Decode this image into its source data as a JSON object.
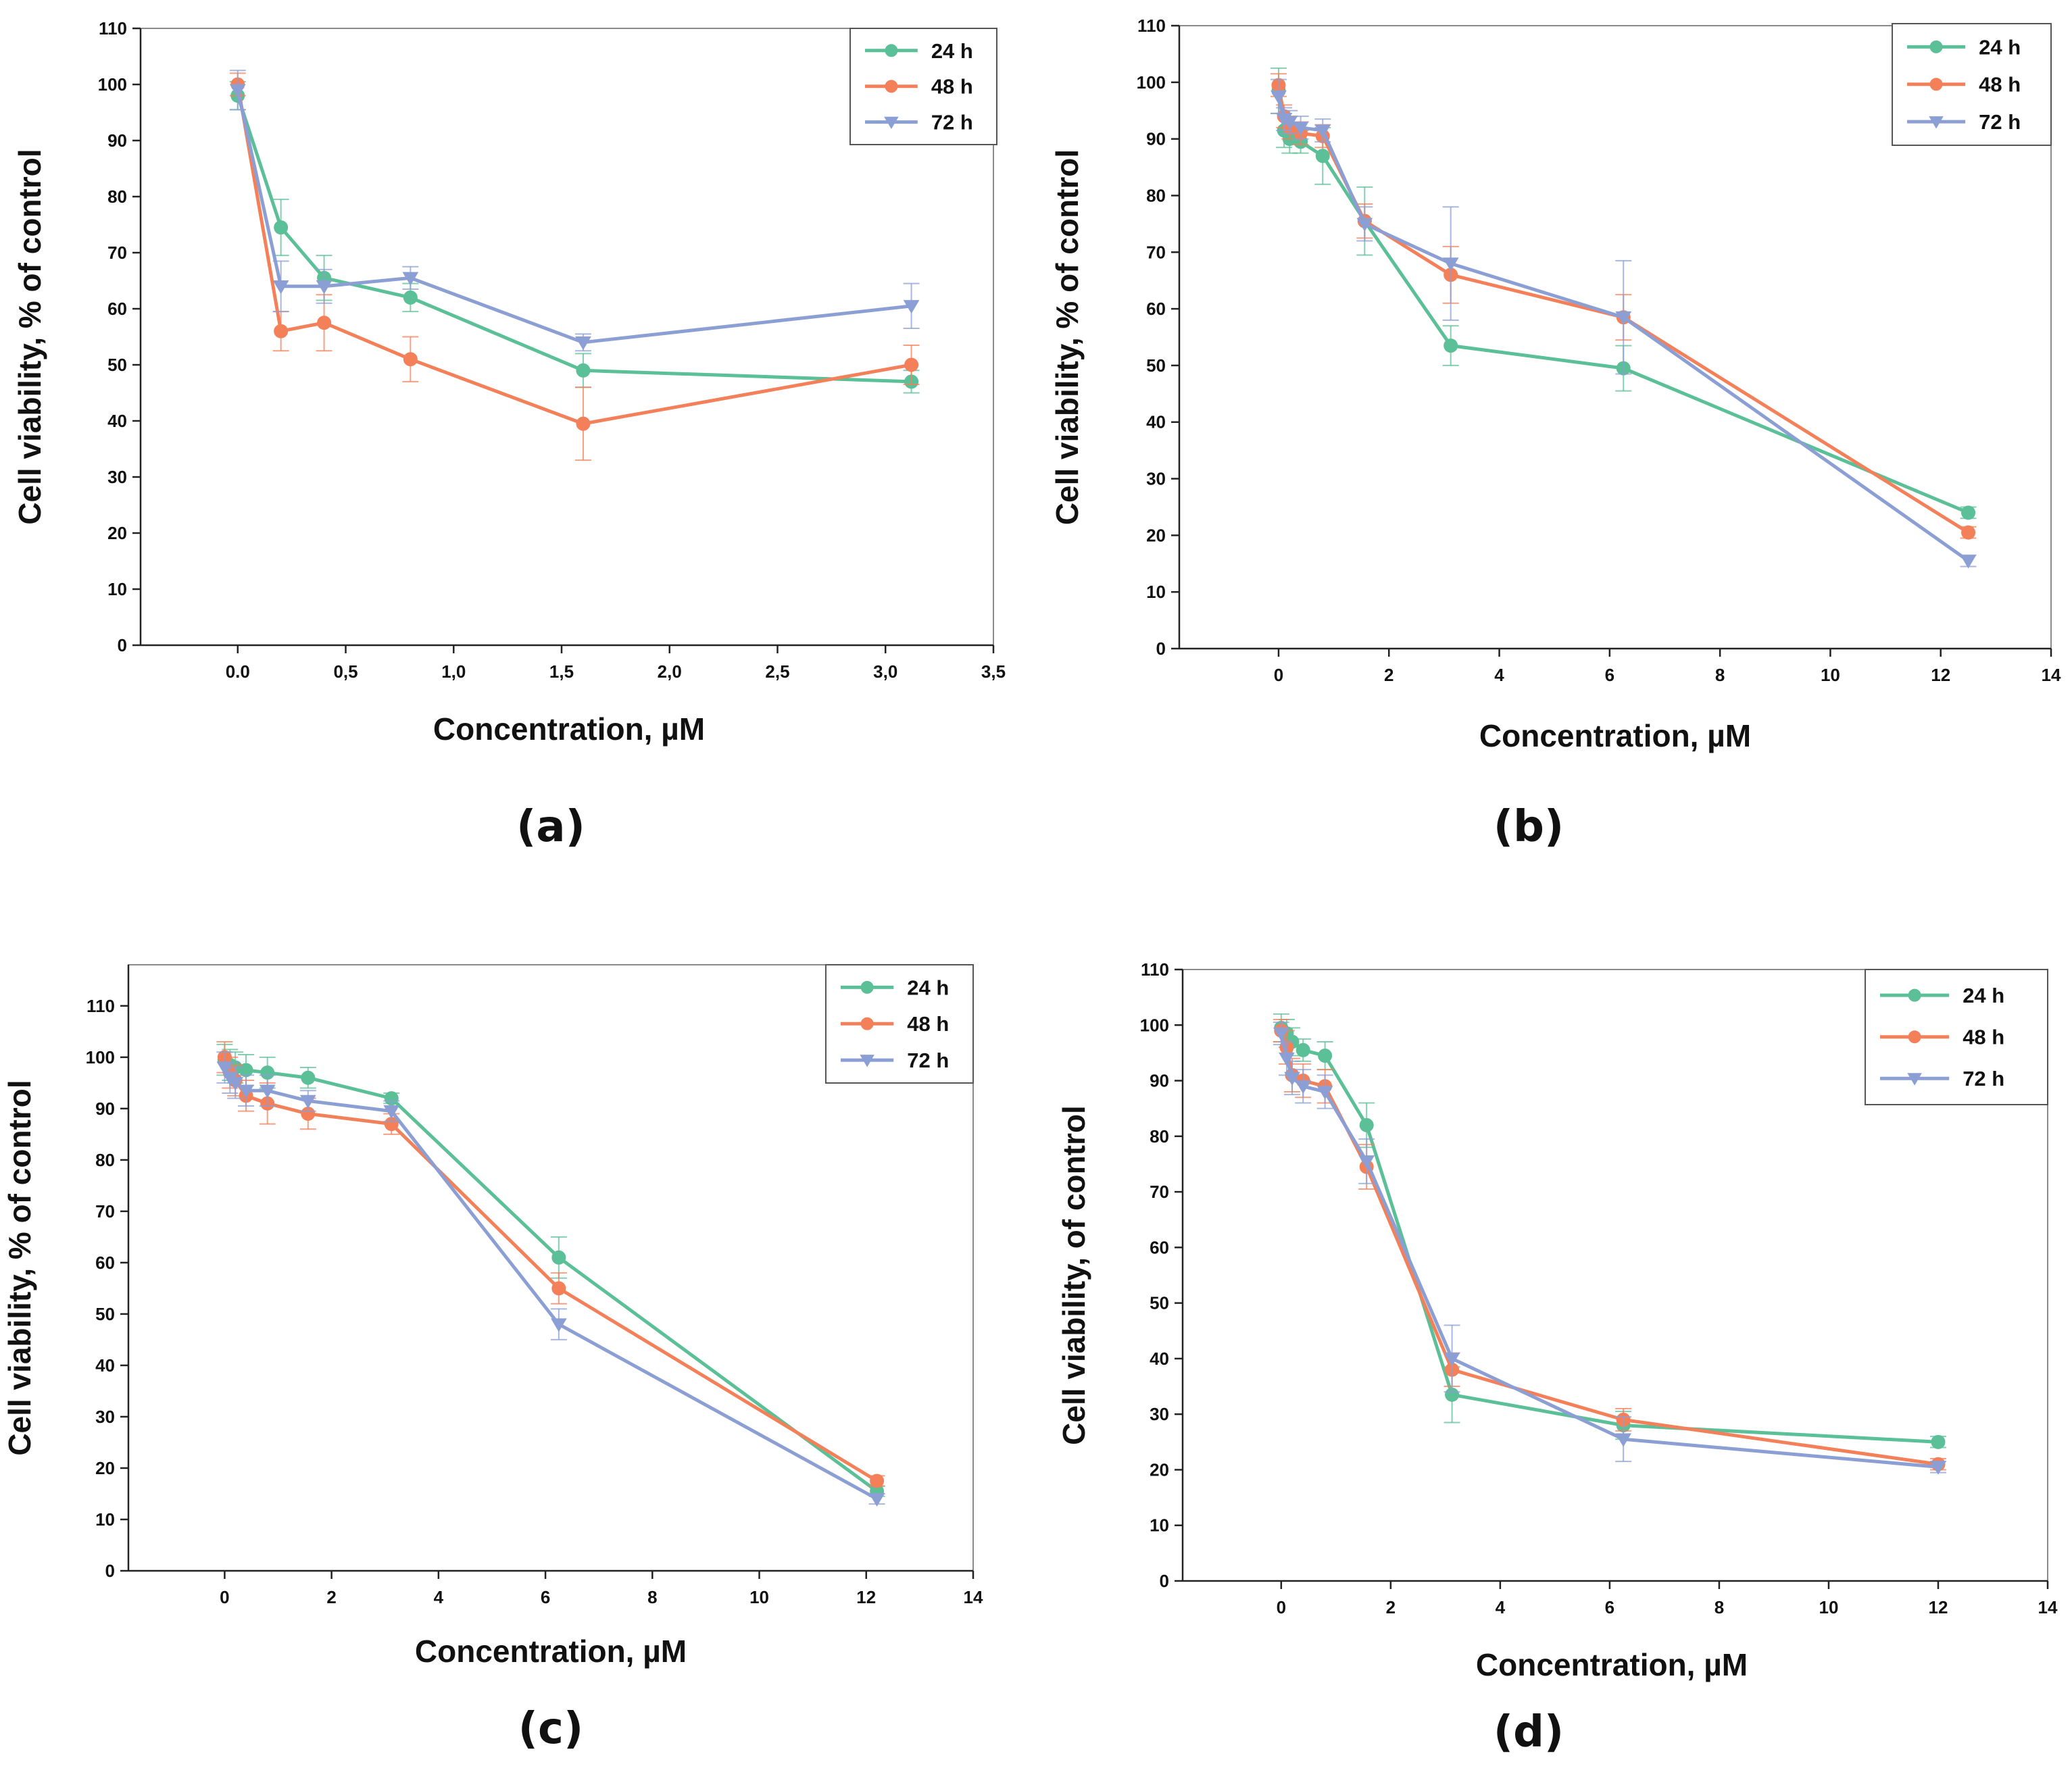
{
  "colors": {
    "s24": "#5bbf97",
    "s48": "#f4805a",
    "s72": "#8c9fd4",
    "axis": "#222222"
  },
  "chart_data": [
    {
      "type": "line",
      "panel_label": "(a)",
      "ylabel": "Cell viability, % of control",
      "xlabel": "Concentration, µM",
      "xlim": [
        -0.45,
        3.5
      ],
      "ylim": [
        0,
        110
      ],
      "xticks": [
        0,
        0.5,
        1.0,
        1.5,
        2.0,
        2.5,
        3.0,
        3.5
      ],
      "xtick_labels": [
        "0.0",
        "0,5",
        "1,0",
        "1,5",
        "2,0",
        "2,5",
        "3,0",
        "3,5"
      ],
      "yticks": [
        0,
        10,
        20,
        30,
        40,
        50,
        60,
        70,
        80,
        90,
        100,
        110
      ],
      "ytick_labels": [
        "0",
        "10",
        "20",
        "30",
        "40",
        "50",
        "60",
        "70",
        "80",
        "90",
        "100",
        "110"
      ],
      "legend_position": "top-right",
      "series": [
        {
          "name": "24 h",
          "marker": "circle",
          "x": [
            0,
            0.2,
            0.4,
            0.8,
            1.6,
            3.12
          ],
          "y": [
            98,
            74.5,
            65.5,
            62,
            49,
            47
          ],
          "err": [
            2.5,
            5,
            4,
            2.5,
            3,
            2
          ]
        },
        {
          "name": "48 h",
          "marker": "circle",
          "x": [
            0,
            0.2,
            0.4,
            0.8,
            1.6,
            3.12
          ],
          "y": [
            100,
            56,
            57.5,
            51,
            39.5,
            50
          ],
          "err": [
            2,
            3.5,
            5,
            4,
            6.5,
            3.5
          ]
        },
        {
          "name": "72 h",
          "marker": "triangle",
          "x": [
            0,
            0.2,
            0.4,
            0.8,
            1.6,
            3.12
          ],
          "y": [
            99,
            64,
            64,
            65.5,
            54,
            60.5
          ],
          "err": [
            3.5,
            4.5,
            3,
            2,
            1.5,
            4
          ]
        }
      ]
    },
    {
      "type": "line",
      "panel_label": "(b)",
      "ylabel": "Cell viability, % of control",
      "xlabel": "Concentration, µM",
      "xlim": [
        -1.8,
        14
      ],
      "ylim": [
        0,
        110
      ],
      "xticks": [
        0,
        2,
        4,
        6,
        8,
        10,
        12,
        14
      ],
      "xtick_labels": [
        "0",
        "2",
        "4",
        "6",
        "8",
        "10",
        "12",
        "14"
      ],
      "yticks": [
        0,
        10,
        20,
        30,
        40,
        50,
        60,
        70,
        80,
        90,
        100,
        110
      ],
      "ytick_labels": [
        "0",
        "10",
        "20",
        "30",
        "40",
        "50",
        "60",
        "70",
        "80",
        "90",
        "100",
        "110"
      ],
      "legend_position": "top-right",
      "series": [
        {
          "name": "24 h",
          "marker": "circle",
          "x": [
            0,
            0.1,
            0.2,
            0.4,
            0.8,
            1.56,
            3.12,
            6.25,
            12.5
          ],
          "y": [
            98.5,
            91.5,
            90,
            89.5,
            87,
            75.5,
            53.5,
            49.5,
            24
          ],
          "err": [
            4,
            3,
            2.5,
            2,
            5,
            6,
            3.5,
            4,
            1
          ]
        },
        {
          "name": "48 h",
          "marker": "circle",
          "x": [
            0,
            0.1,
            0.2,
            0.4,
            0.8,
            1.56,
            3.12,
            6.25,
            12.5
          ],
          "y": [
            99.5,
            94,
            92,
            91,
            90.5,
            75.5,
            66,
            58.5,
            20.5
          ],
          "err": [
            2,
            2,
            2,
            2,
            2,
            3,
            5,
            4,
            1
          ]
        },
        {
          "name": "72 h",
          "marker": "triangle",
          "x": [
            0,
            0.1,
            0.2,
            0.4,
            0.8,
            1.56,
            3.12,
            6.25,
            12.5
          ],
          "y": [
            97.5,
            93.5,
            93,
            92,
            91.5,
            75,
            68,
            58.5,
            15.5
          ],
          "err": [
            3,
            2,
            2,
            2,
            2,
            3,
            10,
            10,
            1
          ]
        }
      ]
    },
    {
      "type": "line",
      "panel_label": "(c)",
      "ylabel": "Cell viability, % of control",
      "xlabel": "Concentration, µM",
      "xlim": [
        -1.8,
        14
      ],
      "ylim": [
        0,
        118
      ],
      "xticks": [
        0,
        2,
        4,
        6,
        8,
        10,
        12,
        14
      ],
      "xtick_labels": [
        "0",
        "2",
        "4",
        "6",
        "8",
        "10",
        "12",
        "14"
      ],
      "yticks": [
        0,
        10,
        20,
        30,
        40,
        50,
        60,
        70,
        80,
        90,
        100,
        110
      ],
      "ytick_labels": [
        "0",
        "10",
        "20",
        "30",
        "40",
        "50",
        "60",
        "70",
        "80",
        "90",
        "100",
        "110"
      ],
      "legend_position": "top-right",
      "series": [
        {
          "name": "24 h",
          "marker": "circle",
          "x": [
            0,
            0.1,
            0.2,
            0.4,
            0.8,
            1.56,
            3.12,
            6.25,
            12.2
          ],
          "y": [
            99.5,
            98.5,
            98,
            97.5,
            97,
            96,
            92,
            61,
            15.5
          ],
          "err": [
            3,
            3,
            3,
            3,
            3,
            2,
            1,
            4,
            1
          ]
        },
        {
          "name": "48 h",
          "marker": "circle",
          "x": [
            0,
            0.1,
            0.2,
            0.4,
            0.8,
            1.56,
            3.12,
            6.25,
            12.2
          ],
          "y": [
            100,
            97,
            95.5,
            92.5,
            91,
            89,
            87,
            55,
            17.5
          ],
          "err": [
            3,
            3,
            3,
            3,
            4,
            3,
            2,
            3,
            1
          ]
        },
        {
          "name": "72 h",
          "marker": "triangle",
          "x": [
            0,
            0.1,
            0.2,
            0.4,
            0.8,
            1.56,
            3.12,
            6.25,
            12.2
          ],
          "y": [
            98,
            96,
            95,
            93.5,
            93.5,
            91.5,
            89.5,
            48,
            14
          ],
          "err": [
            3,
            3,
            3,
            3,
            3,
            2,
            2,
            3,
            1
          ]
        }
      ]
    },
    {
      "type": "line",
      "panel_label": "(d)",
      "ylabel": "Cell viability, of control",
      "xlabel": "Concentration, µM",
      "xlim": [
        -1.8,
        14
      ],
      "ylim": [
        0,
        110
      ],
      "xticks": [
        0,
        2,
        4,
        6,
        8,
        10,
        12,
        14
      ],
      "xtick_labels": [
        "0",
        "2",
        "4",
        "6",
        "8",
        "10",
        "12",
        "14"
      ],
      "yticks": [
        0,
        10,
        20,
        30,
        40,
        50,
        60,
        70,
        80,
        90,
        100,
        110
      ],
      "ytick_labels": [
        "0",
        "10",
        "20",
        "30",
        "40",
        "50",
        "60",
        "70",
        "80",
        "90",
        "100",
        "110"
      ],
      "legend_position": "top-right",
      "series": [
        {
          "name": "24 h",
          "marker": "circle",
          "x": [
            0,
            0.1,
            0.2,
            0.4,
            0.8,
            1.56,
            3.12,
            6.25,
            12
          ],
          "y": [
            99.5,
            98.5,
            97,
            95.5,
            94.5,
            82,
            33.5,
            28,
            25
          ],
          "err": [
            2.5,
            2.5,
            2.5,
            2,
            2.5,
            4,
            5,
            2.5,
            1
          ]
        },
        {
          "name": "48 h",
          "marker": "circle",
          "x": [
            0,
            0.1,
            0.2,
            0.4,
            0.8,
            1.56,
            3.12,
            6.25,
            12
          ],
          "y": [
            99,
            96,
            91,
            90,
            89,
            74.5,
            38,
            29,
            21
          ],
          "err": [
            2,
            3,
            3,
            3,
            3,
            4,
            3,
            2,
            1
          ]
        },
        {
          "name": "72 h",
          "marker": "triangle",
          "x": [
            0,
            0.1,
            0.2,
            0.4,
            0.8,
            1.56,
            3.12,
            6.25,
            12
          ],
          "y": [
            98.5,
            94,
            90.5,
            89,
            88,
            75.5,
            40,
            25.5,
            20.5
          ],
          "err": [
            2,
            3,
            3,
            3,
            3,
            4,
            6,
            4,
            1
          ]
        }
      ]
    }
  ]
}
